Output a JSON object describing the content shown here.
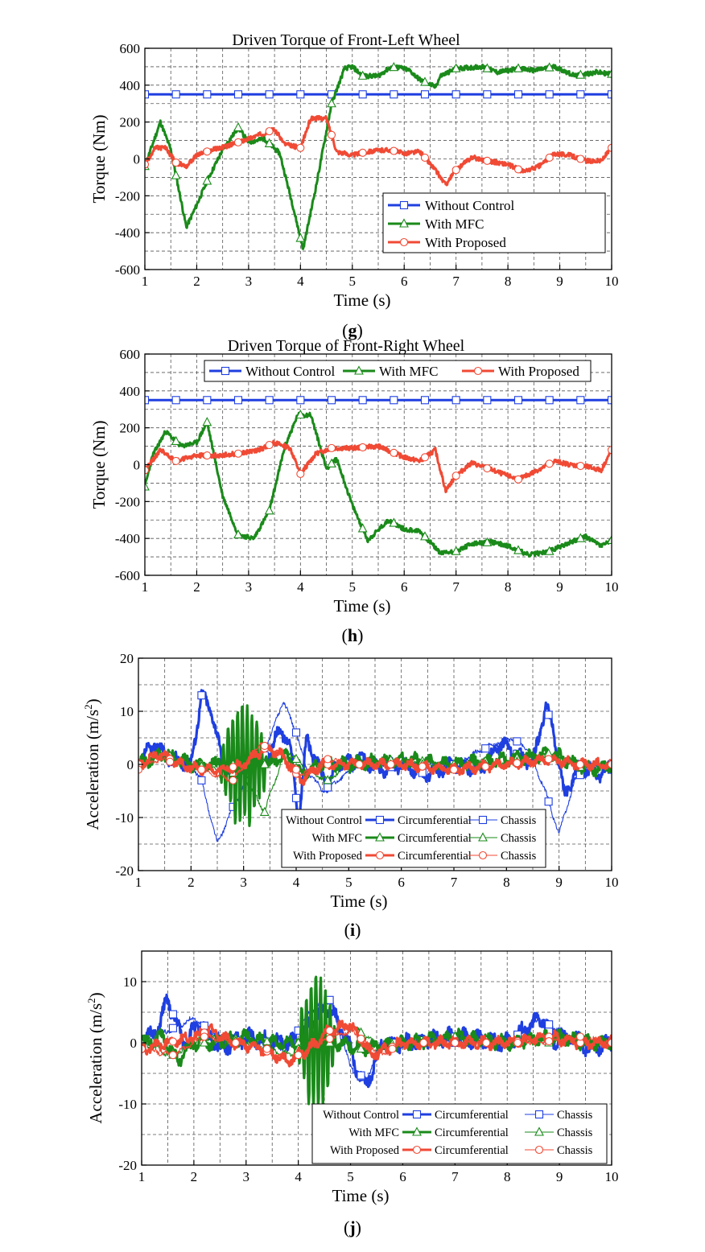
{
  "chart_data": [
    {
      "type": "line",
      "title": "Driven Torque of Front-Left Wheel",
      "caption_label": "g",
      "xlabel": "Time (s)",
      "ylabel": "Torque (Nm)",
      "xlim": [
        1,
        10
      ],
      "ylim": [
        -600,
        600
      ],
      "xticks": [
        1,
        2,
        3,
        4,
        5,
        6,
        7,
        8,
        9,
        10
      ],
      "yticks": [
        -600,
        -400,
        -200,
        0,
        200,
        400,
        600
      ],
      "legend": "bottom-right",
      "series": [
        {
          "name": "Without Control",
          "color": "#1f3fe0",
          "marker": "square",
          "x": [
            1,
            10
          ],
          "y": [
            350,
            350
          ]
        },
        {
          "name": "With MFC",
          "color": "#1a8a1a",
          "marker": "triangle",
          "x": [
            1,
            1.15,
            1.3,
            1.5,
            1.8,
            2.0,
            2.2,
            2.5,
            2.8,
            3.0,
            3.3,
            3.6,
            3.85,
            4.05,
            4.3,
            4.6,
            4.85,
            5.0,
            5.2,
            5.5,
            5.7,
            5.85,
            6.1,
            6.3,
            6.6,
            6.7,
            7.0,
            7.5,
            7.8,
            8.2,
            8.5,
            8.9,
            9.3,
            9.7,
            10
          ],
          "y": [
            -40,
            80,
            200,
            50,
            -370,
            -250,
            -120,
            50,
            170,
            90,
            110,
            30,
            -250,
            -490,
            -150,
            300,
            490,
            500,
            450,
            450,
            490,
            500,
            480,
            430,
            390,
            450,
            490,
            500,
            470,
            490,
            480,
            500,
            450,
            470,
            460
          ]
        },
        {
          "name": "With Proposed",
          "color": "#f04a35",
          "marker": "circle",
          "x": [
            1,
            1.2,
            1.4,
            1.6,
            1.8,
            2.0,
            2.3,
            2.6,
            2.9,
            3.2,
            3.5,
            3.7,
            4.0,
            4.2,
            4.5,
            4.7,
            5.0,
            5.3,
            5.7,
            6.0,
            6.3,
            6.6,
            6.8,
            7.0,
            7.3,
            7.6,
            8.0,
            8.3,
            8.6,
            8.9,
            9.2,
            9.5,
            9.8,
            10
          ],
          "y": [
            -30,
            60,
            60,
            -20,
            -40,
            20,
            50,
            70,
            100,
            130,
            160,
            80,
            60,
            220,
            220,
            40,
            20,
            40,
            50,
            30,
            40,
            -60,
            -140,
            -60,
            10,
            -10,
            -30,
            -70,
            -40,
            30,
            20,
            -10,
            -10,
            60
          ]
        }
      ]
    },
    {
      "type": "line",
      "title": "Driven Torque of Front-Right Wheel",
      "caption_label": "h",
      "xlabel": "Time (s)",
      "ylabel": "Torque (Nm)",
      "xlim": [
        1,
        10
      ],
      "ylim": [
        -600,
        600
      ],
      "xticks": [
        1,
        2,
        3,
        4,
        5,
        6,
        7,
        8,
        9,
        10
      ],
      "yticks": [
        -600,
        -400,
        -200,
        0,
        200,
        400,
        600
      ],
      "legend": "top",
      "series": [
        {
          "name": "Without Control",
          "color": "#1f3fe0",
          "marker": "square",
          "x": [
            1,
            10
          ],
          "y": [
            350,
            350
          ]
        },
        {
          "name": "With MFC",
          "color": "#1a8a1a",
          "marker": "triangle",
          "x": [
            1,
            1.15,
            1.4,
            1.7,
            2.0,
            2.2,
            2.5,
            2.8,
            3.1,
            3.4,
            3.7,
            3.95,
            4.2,
            4.5,
            4.7,
            5.0,
            5.3,
            5.7,
            6.0,
            6.3,
            6.7,
            7.0,
            7.3,
            7.7,
            8.0,
            8.4,
            8.8,
            9.2,
            9.5,
            9.8,
            10
          ],
          "y": [
            -120,
            50,
            180,
            100,
            120,
            230,
            -170,
            -380,
            -400,
            -250,
            100,
            270,
            270,
            -20,
            30,
            -220,
            -410,
            -300,
            -350,
            -360,
            -480,
            -470,
            -430,
            -420,
            -440,
            -490,
            -470,
            -420,
            -390,
            -440,
            -410
          ]
        },
        {
          "name": "With Proposed",
          "color": "#f04a35",
          "marker": "circle",
          "x": [
            1,
            1.3,
            1.6,
            2.0,
            2.4,
            2.8,
            3.2,
            3.5,
            3.8,
            4.0,
            4.3,
            4.6,
            5.0,
            5.5,
            6.0,
            6.3,
            6.6,
            6.8,
            7.0,
            7.3,
            7.6,
            8.0,
            8.2,
            8.5,
            8.9,
            9.2,
            9.5,
            9.8,
            10
          ],
          "y": [
            -30,
            80,
            20,
            50,
            50,
            60,
            80,
            120,
            90,
            -50,
            60,
            90,
            90,
            100,
            40,
            20,
            80,
            -140,
            -60,
            10,
            -20,
            -60,
            -80,
            -40,
            20,
            0,
            -10,
            -30,
            80
          ]
        }
      ]
    },
    {
      "type": "line",
      "caption_label": "i",
      "xlabel": "Time (s)",
      "ylabel": "Acceleration (m/s²)",
      "xlim": [
        1,
        10
      ],
      "ylim": [
        -20,
        20
      ],
      "xticks": [
        1,
        2,
        3,
        4,
        5,
        6,
        7,
        8,
        9,
        10
      ],
      "yticks": [
        -20,
        -10,
        0,
        10,
        20
      ],
      "legend": "bottom-right",
      "legend_rows": [
        "Without Control",
        "With MFC",
        "With Proposed"
      ],
      "legend_cols": [
        "Circumferential",
        "Chassis"
      ],
      "series": [
        {
          "name": "Without Control Circumferential",
          "color": "#1f3fe0",
          "width": 3.2,
          "marker": "square",
          "x": [
            1,
            1.3,
            1.6,
            2.0,
            2.2,
            2.4,
            2.6,
            2.9,
            3.2,
            3.5,
            3.7,
            3.9,
            4.05,
            4.2,
            4.4,
            4.6,
            4.8,
            5.2,
            5.6,
            6.0,
            6.5,
            7.0,
            7.5,
            7.9,
            8.2,
            8.5,
            8.75,
            8.9,
            9.1,
            9.4,
            9.7,
            10
          ],
          "y": [
            0,
            4,
            1,
            0,
            13,
            10,
            0,
            -1,
            1,
            2,
            7,
            3,
            -11,
            5,
            0,
            -4,
            0,
            1,
            -1,
            0,
            -2,
            0,
            -1,
            4,
            2,
            0,
            11,
            6,
            -6,
            0,
            -2,
            -1
          ]
        },
        {
          "name": "Without Control Chassis",
          "color": "#1f3fe0",
          "width": 1.1,
          "marker": "square",
          "x": [
            1,
            1.5,
            2.0,
            2.2,
            2.5,
            2.8,
            3.2,
            3.5,
            3.75,
            4.0,
            4.2,
            4.5,
            4.8,
            5.2,
            6.0,
            7.0,
            7.8,
            8.1,
            8.4,
            8.7,
            9.0,
            9.3,
            9.6,
            10
          ],
          "y": [
            0,
            2,
            0,
            -3,
            -15,
            -8,
            0,
            5,
            12,
            6,
            -1,
            -5,
            -3,
            0,
            0,
            0,
            4,
            5,
            3,
            -4,
            -13,
            -3,
            0,
            0
          ]
        },
        {
          "name": "With MFC Circumferential",
          "color": "#1a8a1a",
          "width": 3.2,
          "marker": "triangle",
          "x": [
            1,
            1.5,
            2.0,
            2.5,
            3.0,
            3.5,
            3.8,
            4.1,
            4.5,
            5.0,
            6.0,
            7.0,
            8.0,
            8.9,
            9.3,
            9.7,
            10
          ],
          "y": [
            0,
            2,
            0,
            0,
            0,
            0,
            2,
            -2,
            0,
            0,
            1,
            0,
            1,
            2,
            0,
            -1,
            0
          ],
          "oscillation": {
            "x": [
              2.5,
              3.5
            ],
            "amplitude": 11
          }
        },
        {
          "name": "With MFC Chassis",
          "color": "#1a8a1a",
          "width": 1.1,
          "marker": "triangle",
          "x": [
            1,
            1.5,
            2.0,
            2.5,
            3.0,
            3.4,
            3.8,
            4.2,
            4.6,
            5.0,
            6.0,
            7.0,
            8.0,
            8.8,
            9.2,
            9.6,
            10
          ],
          "y": [
            0,
            2,
            0,
            -1,
            -2,
            -9,
            3,
            -1,
            -3,
            0,
            0,
            0,
            0,
            2,
            0,
            -1,
            0
          ]
        },
        {
          "name": "With Proposed Circumferential",
          "color": "#f04a35",
          "width": 3.2,
          "marker": "circle",
          "x": [
            1,
            1.4,
            1.8,
            2.2,
            2.6,
            3.0,
            3.4,
            3.7,
            4.1,
            4.5,
            5.0,
            6.0,
            7.0,
            8.0,
            8.8,
            9.4,
            10
          ],
          "y": [
            0,
            2,
            0,
            -1,
            -1,
            0,
            3,
            2,
            -3,
            0,
            0,
            0,
            -1,
            0,
            1,
            0,
            0
          ]
        },
        {
          "name": "With Proposed Chassis",
          "color": "#f04a35",
          "width": 1.1,
          "marker": "circle",
          "x": [
            1,
            1.4,
            1.8,
            2.2,
            2.8,
            3.3,
            3.7,
            4.1,
            4.6,
            5.0,
            6.0,
            7.0,
            8.0,
            8.8,
            9.4,
            10
          ],
          "y": [
            -1,
            1,
            0,
            -1,
            -3,
            4,
            2,
            -2,
            1,
            0,
            0,
            -1,
            0,
            1,
            0,
            0
          ]
        }
      ]
    },
    {
      "type": "line",
      "caption_label": "j",
      "xlabel": "Time (s)",
      "ylabel": "Acceleration (m/s²)",
      "xlim": [
        1,
        10
      ],
      "ylim": [
        -20,
        15
      ],
      "xticks": [
        1,
        2,
        3,
        4,
        5,
        6,
        7,
        8,
        9,
        10
      ],
      "yticks": [
        -20,
        -10,
        0,
        10
      ],
      "legend": "bottom-right",
      "legend_rows": [
        "Without Control",
        "With MFC",
        "With Proposed"
      ],
      "legend_cols": [
        "Circumferential",
        "Chassis"
      ],
      "series": [
        {
          "name": "Without Control Circumferential",
          "color": "#1f3fe0",
          "width": 3.2,
          "marker": "square",
          "x": [
            1,
            1.3,
            1.5,
            1.8,
            2.1,
            2.5,
            3.0,
            3.5,
            4.0,
            4.3,
            4.6,
            4.9,
            5.1,
            5.3,
            5.6,
            6.0,
            7.0,
            8.0,
            8.5,
            8.7,
            8.9,
            9.2,
            9.6,
            10
          ],
          "y": [
            0,
            2,
            7,
            0,
            3,
            -1,
            1,
            0,
            0,
            4,
            6,
            1,
            -4,
            -7,
            0,
            0,
            1,
            0,
            3,
            4,
            0,
            1,
            -1,
            0
          ]
        },
        {
          "name": "Without Control Chassis",
          "color": "#1f3fe0",
          "width": 1.1,
          "marker": "square",
          "x": [
            1,
            1.5,
            2.0,
            2.5,
            3.0,
            3.8,
            4.2,
            4.6,
            5.0,
            5.3,
            5.6,
            6.0,
            7.0,
            8.0,
            8.6,
            9.0,
            9.4,
            10
          ],
          "y": [
            0,
            2,
            4,
            1,
            0,
            -1,
            5,
            7,
            -4,
            -6,
            0,
            0,
            0,
            0,
            4,
            2,
            0,
            0
          ]
        },
        {
          "name": "With MFC Circumferential",
          "color": "#1a8a1a",
          "width": 3.2,
          "marker": "triangle",
          "x": [
            1,
            1.4,
            1.7,
            2.0,
            2.4,
            3.0,
            3.5,
            3.9,
            4.8,
            5.2,
            6.0,
            7.0,
            8.0,
            9.0,
            9.5,
            10
          ],
          "y": [
            0,
            1,
            -3,
            0,
            0,
            1,
            0,
            0,
            0,
            -1,
            0,
            1,
            0,
            1,
            0,
            0
          ],
          "oscillation": {
            "x": [
              3.95,
              4.75
            ],
            "amplitude": 11
          }
        },
        {
          "name": "With MFC Chassis",
          "color": "#1a8a1a",
          "width": 1.1,
          "marker": "triangle",
          "x": [
            1,
            1.6,
            2.2,
            3.0,
            3.8,
            4.4,
            5.0,
            5.6,
            6.4,
            7.0,
            8.0,
            8.8,
            9.4,
            10
          ],
          "y": [
            0,
            -2,
            1,
            0,
            -2,
            1,
            3,
            -1,
            0,
            1,
            0,
            0,
            1,
            0
          ]
        },
        {
          "name": "With Proposed Circumferential",
          "color": "#f04a35",
          "width": 3.2,
          "marker": "circle",
          "x": [
            1,
            1.5,
            2.0,
            2.3,
            2.8,
            3.3,
            3.8,
            4.2,
            4.6,
            5.0,
            5.4,
            6.0,
            7.0,
            8.0,
            8.8,
            9.4,
            10
          ],
          "y": [
            -1,
            0,
            1,
            2,
            0,
            -1,
            -3,
            -1,
            2,
            3,
            -2,
            0,
            0,
            0,
            1,
            0,
            0
          ]
        },
        {
          "name": "With Proposed Chassis",
          "color": "#f04a35",
          "width": 1.1,
          "marker": "circle",
          "x": [
            1,
            1.6,
            2.2,
            2.8,
            3.4,
            3.8,
            4.4,
            5.0,
            5.6,
            6.0,
            7.0,
            8.0,
            8.6,
            9.4,
            10
          ],
          "y": [
            -1,
            -2,
            1,
            0,
            -1,
            -3,
            0,
            2,
            -2,
            0,
            0,
            0,
            0,
            1,
            0
          ]
        }
      ]
    }
  ]
}
